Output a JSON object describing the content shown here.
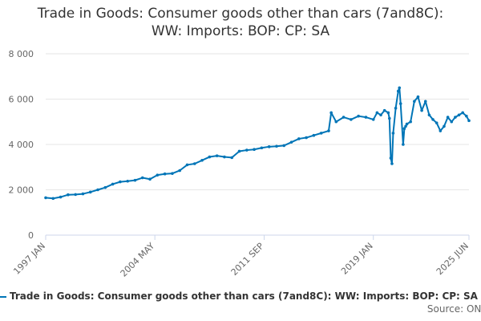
{
  "chart_data": {
    "type": "line",
    "title": "Trade in Goods: Consumer goods other than cars (7and8C): WW: Imports: BOP: CP: SA",
    "title_line1": "Trade in Goods: Consumer goods other than cars (7and8C):",
    "title_line2": "WW: Imports: BOP: CP: SA",
    "xlabel": "",
    "ylabel": "",
    "ylim": [
      0,
      8000
    ],
    "y_ticks": [
      {
        "value": 0,
        "label": "0"
      },
      {
        "value": 2000,
        "label": "2 000"
      },
      {
        "value": 4000,
        "label": "4 000"
      },
      {
        "value": 6000,
        "label": "6 000"
      },
      {
        "value": 8000,
        "label": "8 000"
      }
    ],
    "xlim": [
      1997.0,
      2025.42
    ],
    "x_ticks": [
      {
        "value": 1997.0,
        "label": "1997 JAN"
      },
      {
        "value": 2004.33,
        "label": "2004 MAY"
      },
      {
        "value": 2011.67,
        "label": "2011 SEP"
      },
      {
        "value": 2019.0,
        "label": "2019 JAN"
      },
      {
        "value": 2025.42,
        "label": "2025 JUN"
      }
    ],
    "grid": true,
    "color": "#0075b7",
    "series": [
      {
        "name": "Trade in Goods: Consumer goods other than cars (7and8C): WW: Imports: BOP: CP: SA",
        "x": [
          1997.0,
          1997.5,
          1998.0,
          1998.5,
          1999.0,
          1999.5,
          2000.0,
          2000.5,
          2001.0,
          2001.5,
          2002.0,
          2002.5,
          2003.0,
          2003.5,
          2004.0,
          2004.5,
          2005.0,
          2005.5,
          2006.0,
          2006.5,
          2007.0,
          2007.5,
          2008.0,
          2008.5,
          2009.0,
          2009.5,
          2010.0,
          2010.5,
          2011.0,
          2011.5,
          2012.0,
          2012.5,
          2013.0,
          2013.5,
          2014.0,
          2014.5,
          2015.0,
          2015.5,
          2016.0,
          2016.17,
          2016.5,
          2017.0,
          2017.5,
          2018.0,
          2018.5,
          2019.0,
          2019.25,
          2019.5,
          2019.75,
          2020.0,
          2020.08,
          2020.17,
          2020.25,
          2020.33,
          2020.5,
          2020.67,
          2020.75,
          2020.83,
          2021.0,
          2021.08,
          2021.17,
          2021.25,
          2021.5,
          2021.75,
          2022.0,
          2022.25,
          2022.5,
          2022.75,
          2023.0,
          2023.25,
          2023.5,
          2023.75,
          2024.0,
          2024.25,
          2024.5,
          2024.75,
          2025.0,
          2025.25,
          2025.42
        ],
        "values": [
          1650,
          1620,
          1680,
          1780,
          1790,
          1820,
          1900,
          2000,
          2100,
          2250,
          2350,
          2380,
          2420,
          2530,
          2470,
          2650,
          2700,
          2720,
          2850,
          3100,
          3150,
          3300,
          3450,
          3500,
          3450,
          3420,
          3700,
          3750,
          3780,
          3850,
          3900,
          3920,
          3950,
          4100,
          4250,
          4300,
          4400,
          4500,
          4600,
          5400,
          5000,
          5200,
          5100,
          5250,
          5200,
          5100,
          5400,
          5300,
          5500,
          5400,
          5150,
          3400,
          3150,
          4500,
          5600,
          6350,
          6500,
          5800,
          4000,
          4700,
          4800,
          4900,
          5000,
          5900,
          6100,
          5500,
          5900,
          5300,
          5100,
          4950,
          4600,
          4800,
          5200,
          5000,
          5200,
          5300,
          5400,
          5250,
          5050
        ]
      }
    ]
  },
  "legend": {
    "label": "Trade in Goods: Consumer goods other than cars (7and8C): WW: Imports: BOP: CP: SA"
  },
  "credit": {
    "label": "Source: ONS"
  }
}
